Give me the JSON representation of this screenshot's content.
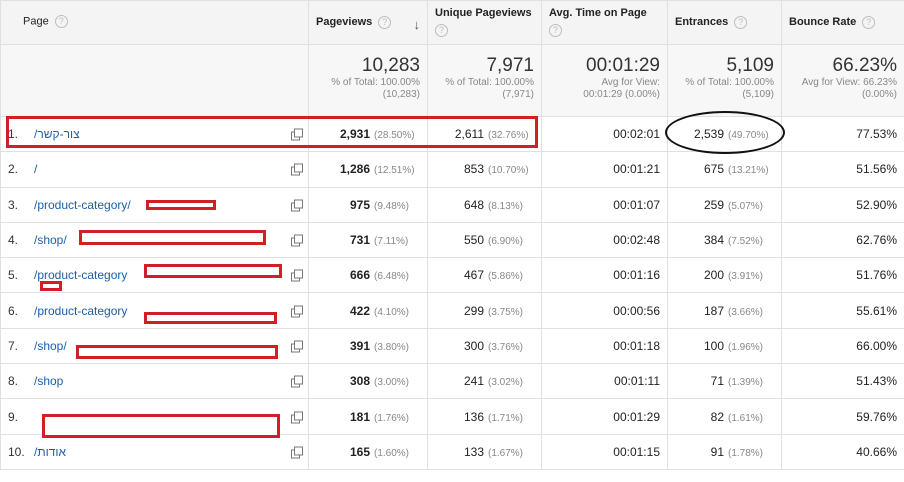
{
  "headers": {
    "page": "Page",
    "pageviews": "Pageviews",
    "unique_pageviews": "Unique Pageviews",
    "avg_time": "Avg. Time on Page",
    "entrances": "Entrances",
    "bounce_rate": "Bounce Rate",
    "help_glyph": "?",
    "sort_glyph": "↓"
  },
  "totals": {
    "pageviews": {
      "value": "10,283",
      "line1": "% of Total: 100.00%",
      "line2": "(10,283)"
    },
    "unique_pageviews": {
      "value": "7,971",
      "line1": "% of Total: 100.00%",
      "line2": "(7,971)"
    },
    "avg_time": {
      "value": "00:01:29",
      "line1": "Avg for View:",
      "line2": "00:01:29 (0.00%)"
    },
    "entrances": {
      "value": "5,109",
      "line1": "% of Total: 100.00%",
      "line2": "(5,109)"
    },
    "bounce_rate": {
      "value": "66.23%",
      "line1": "Avg for View: 66.23%",
      "line2": "(0.00%)"
    }
  },
  "rows": [
    {
      "idx": "1.",
      "page": "/צור-קשר",
      "pv": "2,931",
      "pv_pct": "(28.50%)",
      "upv": "2,611",
      "upv_pct": "(32.76%)",
      "time": "00:02:01",
      "ent": "2,539",
      "ent_pct": "(49.70%)",
      "br": "77.53%"
    },
    {
      "idx": "2.",
      "page": "/",
      "pv": "1,286",
      "pv_pct": "(12.51%)",
      "upv": "853",
      "upv_pct": "(10.70%)",
      "time": "00:01:21",
      "ent": "675",
      "ent_pct": "(13.21%)",
      "br": "51.56%"
    },
    {
      "idx": "3.",
      "page": "/product-category/",
      "pv": "975",
      "pv_pct": "(9.48%)",
      "upv": "648",
      "upv_pct": "(8.13%)",
      "time": "00:01:07",
      "ent": "259",
      "ent_pct": "(5.07%)",
      "br": "52.90%"
    },
    {
      "idx": "4.",
      "page": "/shop/",
      "pv": "731",
      "pv_pct": "(7.11%)",
      "upv": "550",
      "upv_pct": "(6.90%)",
      "time": "00:02:48",
      "ent": "384",
      "ent_pct": "(7.52%)",
      "br": "62.76%"
    },
    {
      "idx": "5.",
      "page": "/product-category",
      "pv": "666",
      "pv_pct": "(6.48%)",
      "upv": "467",
      "upv_pct": "(5.86%)",
      "time": "00:01:16",
      "ent": "200",
      "ent_pct": "(3.91%)",
      "br": "51.76%"
    },
    {
      "idx": "6.",
      "page": "/product-category",
      "pv": "422",
      "pv_pct": "(4.10%)",
      "upv": "299",
      "upv_pct": "(3.75%)",
      "time": "00:00:56",
      "ent": "187",
      "ent_pct": "(3.66%)",
      "br": "55.61%"
    },
    {
      "idx": "7.",
      "page": "/shop/",
      "pv": "391",
      "pv_pct": "(3.80%)",
      "upv": "300",
      "upv_pct": "(3.76%)",
      "time": "00:01:18",
      "ent": "100",
      "ent_pct": "(1.96%)",
      "br": "66.00%"
    },
    {
      "idx": "8.",
      "page": "/shop",
      "pv": "308",
      "pv_pct": "(3.00%)",
      "upv": "241",
      "upv_pct": "(3.02%)",
      "time": "00:01:11",
      "ent": "71",
      "ent_pct": "(1.39%)",
      "br": "51.43%"
    },
    {
      "idx": "9.",
      "page": "",
      "pv": "181",
      "pv_pct": "(1.76%)",
      "upv": "136",
      "upv_pct": "(1.71%)",
      "time": "00:01:29",
      "ent": "82",
      "ent_pct": "(1.61%)",
      "br": "59.76%"
    },
    {
      "idx": "10.",
      "page": "/אודות",
      "pv": "165",
      "pv_pct": "(1.60%)",
      "upv": "133",
      "upv_pct": "(1.67%)",
      "time": "00:01:15",
      "ent": "91",
      "ent_pct": "(1.78%)",
      "br": "40.66%"
    }
  ],
  "colors": {
    "link": "#1a5fa8",
    "annotation_red": "#d01f26",
    "header_bg": "#f4f4f4"
  }
}
